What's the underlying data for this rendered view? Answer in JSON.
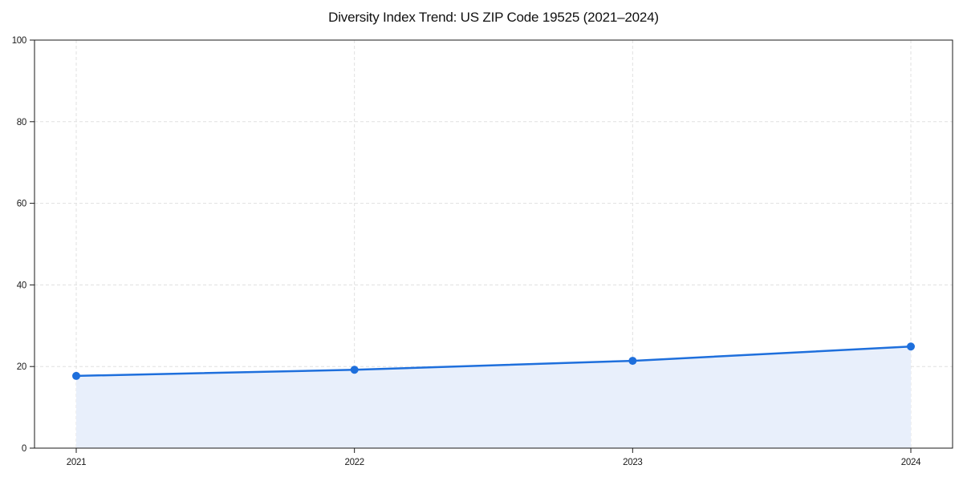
{
  "chart_data": {
    "type": "area",
    "title": "Diversity Index Trend: US ZIP Code 19525 (2021–2024)",
    "categories": [
      "2021",
      "2022",
      "2023",
      "2024"
    ],
    "values": [
      17.7,
      19.2,
      21.4,
      24.9
    ],
    "series_name": "Diversity Index",
    "xlabel": "",
    "ylabel": "",
    "ylim": [
      0,
      100
    ],
    "yticks": [
      0,
      20,
      40,
      60,
      80,
      100
    ],
    "grid": "dashed",
    "legend": "none",
    "line_color": "#1e6fdc",
    "marker_color": "#1e6fdc",
    "fill_color": "#e8effb",
    "grid_color": "#e0e0e0",
    "axis_color": "#1a1a1a",
    "title_color": "#111111",
    "background_color": "#ffffff"
  }
}
